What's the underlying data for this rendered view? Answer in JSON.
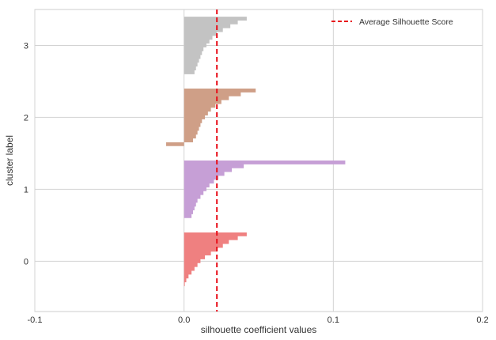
{
  "chart_data": {
    "type": "area",
    "xlabel": "silhouette coefficient values",
    "ylabel": "cluster label",
    "xlim": [
      -0.1,
      0.2
    ],
    "ylim": [
      -0.7,
      3.5
    ],
    "x_ticks": [
      "-0.1",
      "0.0",
      "0.1",
      "0.2"
    ],
    "y_ticks": [
      "0",
      "1",
      "2",
      "3"
    ],
    "grid": true,
    "legend": {
      "placement": "top-right",
      "entries": [
        "Average Silhouette Score"
      ]
    },
    "average_silhouette_score": 0.022,
    "avg_line_color": "#e8101a",
    "clusters": [
      {
        "label": "0",
        "color": "#ef8080",
        "y_range": [
          -0.4,
          0.4
        ],
        "profile_max_to_min": [
          0.042,
          0.036,
          0.03,
          0.026,
          0.022,
          0.018,
          0.014,
          0.011,
          0.009,
          0.007,
          0.005,
          0.003,
          0.0015,
          0.0005,
          0.0
        ]
      },
      {
        "label": "1",
        "color": "#c69fd6",
        "y_range": [
          0.6,
          1.4
        ],
        "profile_max_to_min": [
          0.108,
          0.04,
          0.032,
          0.027,
          0.023,
          0.02,
          0.017,
          0.015,
          0.013,
          0.011,
          0.009,
          0.008,
          0.007,
          0.006,
          0.005
        ]
      },
      {
        "label": "2",
        "color": "#cf9f87",
        "y_range": [
          1.6,
          2.4
        ],
        "profile_max_to_min": [
          0.048,
          0.038,
          0.03,
          0.025,
          0.021,
          0.018,
          0.016,
          0.014,
          0.012,
          0.011,
          0.01,
          0.009,
          0.008,
          0.006,
          -0.012
        ]
      },
      {
        "label": "3",
        "color": "#c3c3c3",
        "y_range": [
          2.6,
          3.4
        ],
        "profile_max_to_min": [
          0.042,
          0.036,
          0.031,
          0.026,
          0.022,
          0.019,
          0.017,
          0.015,
          0.013,
          0.012,
          0.011,
          0.01,
          0.009,
          0.008,
          0.007
        ]
      }
    ]
  }
}
